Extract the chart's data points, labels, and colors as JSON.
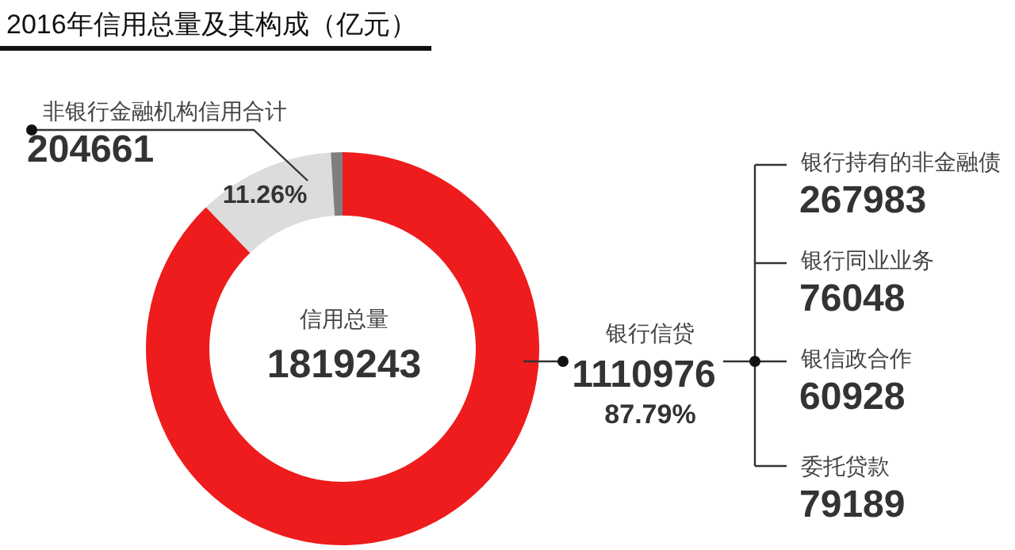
{
  "chart_data": {
    "type": "donut",
    "title": "2016年信用总量及其构成（亿元）",
    "categories": [
      "银行信贷",
      "非银行金融机构信用合计",
      null
    ],
    "values": [
      87.79,
      11.26,
      0.95
    ],
    "colors": [
      "#ee1c1c",
      "#dcdcdc",
      "#7f7f7f"
    ],
    "value_labels": [
      "87.79%",
      "11.26%",
      null
    ],
    "annotations": [
      "信用总量",
      "1819243",
      "1110976",
      "204661",
      "银行持有的非金融债",
      "267983",
      "银行同业业务",
      "76048",
      "银信政合作",
      "60928",
      "委托贷款",
      "79189"
    ]
  }
}
